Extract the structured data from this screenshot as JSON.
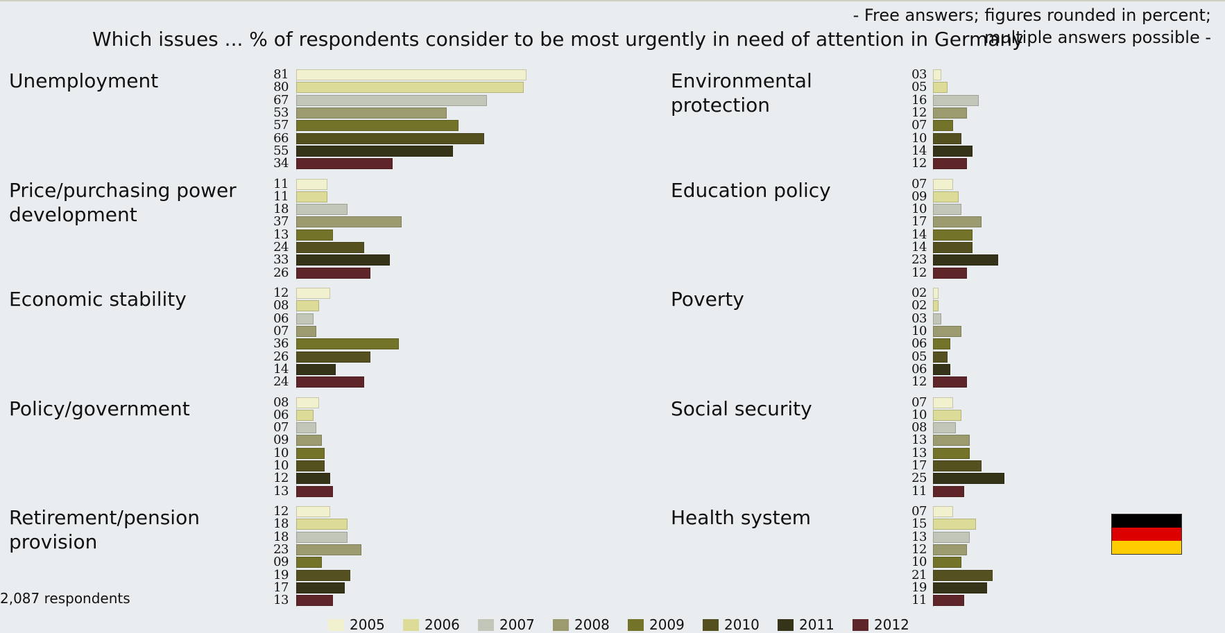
{
  "header": {
    "title": "Which issues ... % of respondents consider to be most urgently in need of attention in Germany",
    "note_line1": "- Free answers; figures rounded in percent;",
    "note_line2": "multiple answers possible -"
  },
  "footer": {
    "respondents": "2,087 respondents"
  },
  "flag": {
    "colors": [
      "#000000",
      "#dd0000",
      "#ffcc00"
    ],
    "icon": "germany-flag-icon"
  },
  "chart_data": {
    "type": "bar",
    "orientation": "horizontal",
    "title": "Which issues ... % of respondents consider to be most urgently in need of attention in Germany",
    "legend_position": "bottom",
    "grid": false,
    "series": [
      {
        "name": "2005",
        "color": "#f2f1cf"
      },
      {
        "name": "2006",
        "color": "#dcdb98"
      },
      {
        "name": "2007",
        "color": "#c2c6b8"
      },
      {
        "name": "2008",
        "color": "#9c9b70"
      },
      {
        "name": "2009",
        "color": "#74732a"
      },
      {
        "name": "2010",
        "color": "#545020"
      },
      {
        "name": "2011",
        "color": "#353318"
      },
      {
        "name": "2012",
        "color": "#5e2628"
      }
    ],
    "categories": [
      {
        "label": "Unemployment",
        "values": [
          "81",
          "80",
          "67",
          "53",
          "57",
          "66",
          "55",
          "34"
        ]
      },
      {
        "label": "Price/purchasing power development",
        "values": [
          "11",
          "11",
          "18",
          "37",
          "13",
          "24",
          "33",
          "26"
        ]
      },
      {
        "label": "Economic stability",
        "values": [
          "12",
          "08",
          "06",
          "07",
          "36",
          "26",
          "14",
          "24"
        ]
      },
      {
        "label": "Policy/government",
        "values": [
          "08",
          "06",
          "07",
          "09",
          "10",
          "10",
          "12",
          "13"
        ]
      },
      {
        "label": "Retirement/pension provision",
        "values": [
          "12",
          "18",
          "18",
          "23",
          "09",
          "19",
          "17",
          "13"
        ]
      },
      {
        "label": "Environmental protection",
        "values": [
          "03",
          "05",
          "16",
          "12",
          "07",
          "10",
          "14",
          "12"
        ]
      },
      {
        "label": "Education policy",
        "values": [
          "07",
          "09",
          "10",
          "17",
          "14",
          "14",
          "23",
          "12"
        ]
      },
      {
        "label": "Poverty",
        "values": [
          "02",
          "02",
          "03",
          "10",
          "06",
          "05",
          "06",
          "12"
        ]
      },
      {
        "label": "Social security",
        "values": [
          "07",
          "10",
          "08",
          "13",
          "13",
          "17",
          "25",
          "11"
        ]
      },
      {
        "label": "Health system",
        "values": [
          "07",
          "15",
          "13",
          "12",
          "10",
          "21",
          "19",
          "11"
        ]
      }
    ]
  }
}
